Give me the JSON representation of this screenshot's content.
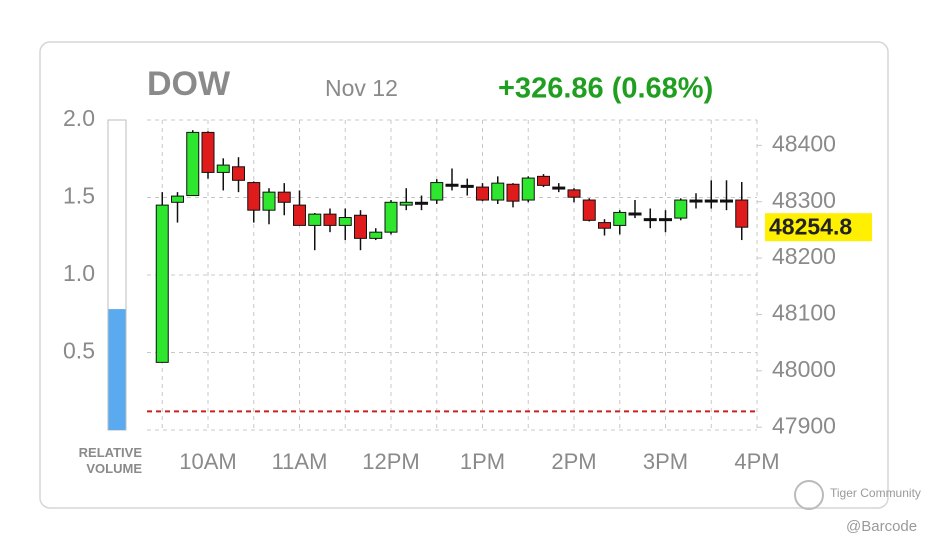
{
  "chart_data": {
    "type": "candlestick",
    "title": "DOW",
    "date": "Nov 12",
    "change": "+326.86 (0.68%)",
    "last_price": 48254.8,
    "colors": {
      "up": "#2ee62e",
      "down": "#e01b1b",
      "flat": "#111111",
      "change": "#1f9e1f",
      "volume": "#5aaaf0",
      "highlight": "#ffef00",
      "ref_line": "#cc1f1f"
    },
    "xlim": [
      -1,
      39
    ],
    "xticks": [
      {
        "value": 3,
        "label": "10AM"
      },
      {
        "value": 9,
        "label": "11AM"
      },
      {
        "value": 15,
        "label": "12PM"
      },
      {
        "value": 21,
        "label": "1PM"
      },
      {
        "value": 27,
        "label": "2PM"
      },
      {
        "value": 33,
        "label": "3PM"
      },
      {
        "value": 39,
        "label": "4PM"
      }
    ],
    "open": [
      48015,
      48299,
      48311,
      48423,
      48352,
      48362,
      48334,
      48285,
      48317,
      48294,
      48258,
      48278,
      48258,
      48276,
      48235,
      48246,
      48294,
      48299,
      48303,
      48331,
      48329,
      48326,
      48303,
      48331,
      48303,
      48345,
      48326,
      48321,
      48303,
      48263,
      48258,
      48280,
      48270,
      48270,
      48271,
      48303,
      48303,
      48303,
      48303
    ],
    "high": [
      48317,
      48317,
      48427,
      48425,
      48377,
      48379,
      48336,
      48324,
      48333,
      48320,
      48280,
      48288,
      48288,
      48285,
      48253,
      48303,
      48324,
      48311,
      48340,
      48359,
      48341,
      48333,
      48345,
      48333,
      48345,
      48349,
      48333,
      48324,
      48306,
      48269,
      48285,
      48303,
      48288,
      48285,
      48306,
      48315,
      48338,
      48338,
      48335
    ],
    "low": [
      48015,
      48263,
      48311,
      48341,
      48320,
      48317,
      48263,
      48260,
      48276,
      48258,
      48214,
      48246,
      48232,
      48214,
      48232,
      48242,
      48285,
      48285,
      48296,
      48320,
      48311,
      48301,
      48296,
      48290,
      48299,
      48326,
      48317,
      48299,
      48265,
      48240,
      48242,
      48271,
      48253,
      48246,
      48267,
      48288,
      48288,
      48285,
      48232
    ],
    "close": [
      48294,
      48310,
      48423,
      48352,
      48365,
      48338,
      48285,
      48317,
      48299,
      48258,
      48278,
      48258,
      48272,
      48235,
      48246,
      48299,
      48299,
      48299,
      48334,
      48331,
      48329,
      48303,
      48333,
      48301,
      48342,
      48329,
      48326,
      48308,
      48267,
      48253,
      48281,
      48280,
      48270,
      48270,
      48303,
      48303,
      48303,
      48303,
      48254.8
    ],
    "y2lim": [
      47895,
      48445
    ],
    "y2ticks": [
      47900,
      48000,
      48100,
      48200,
      48300,
      48400
    ],
    "ref_line": 47927.94,
    "volume": {
      "label": "RELATIVE VOLUME",
      "value": 0.78,
      "ylim": [
        0,
        2
      ],
      "yticks": [
        0.5,
        {
          "value": 1,
          "label": "1.0"
        },
        1.5,
        {
          "value": 2,
          "label": "2.0"
        }
      ]
    },
    "grid": true
  },
  "watermark": {
    "brand": "Tiger Community",
    "user": "@Barcode"
  }
}
